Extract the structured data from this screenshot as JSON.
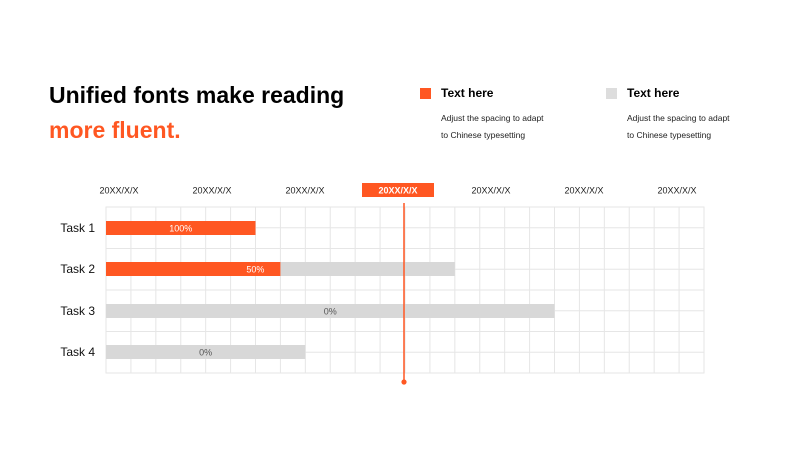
{
  "header": {
    "title_line1": "Unified fonts make reading",
    "title_line2": "more fluent.",
    "accent_color": "#FF5722"
  },
  "legend": [
    {
      "title": "Text here",
      "description_line1": "Adjust the spacing to adapt",
      "description_line2": "to Chinese typesetting",
      "color": "#FF5722"
    },
    {
      "title": "Text here",
      "description_line1": "Adjust the spacing to adapt",
      "description_line2": "to Chinese typesetting",
      "color": "#DDDDDD"
    }
  ],
  "chart_data": {
    "type": "gantt",
    "date_labels": [
      "20XX/X/X",
      "20XX/X/X",
      "20XX/X/X",
      "20XX/X/X",
      "20XX/X/X",
      "20XX/X/X",
      "20XX/X/X"
    ],
    "highlighted_date_index": 3,
    "grid_columns": 24,
    "axis_range": [
      0,
      24
    ],
    "grid": true,
    "today_marker_at": 12,
    "tasks": [
      {
        "name": "Task 1",
        "start": 0,
        "end": 6,
        "progress_end": 6,
        "progress_label": "100%"
      },
      {
        "name": "Task 2",
        "start": 0,
        "end": 14,
        "progress_end": 7,
        "progress_label": "50%"
      },
      {
        "name": "Task 3",
        "start": 0,
        "end": 18,
        "progress_end": 0,
        "progress_label": "0%"
      },
      {
        "name": "Task 4",
        "start": 0,
        "end": 8,
        "progress_end": 0,
        "progress_label": "0%"
      }
    ],
    "colors": {
      "progress": "#FF5722",
      "remaining": "#D8D8D8",
      "grid": "#E6E6E6",
      "marker": "#FF5722"
    }
  }
}
